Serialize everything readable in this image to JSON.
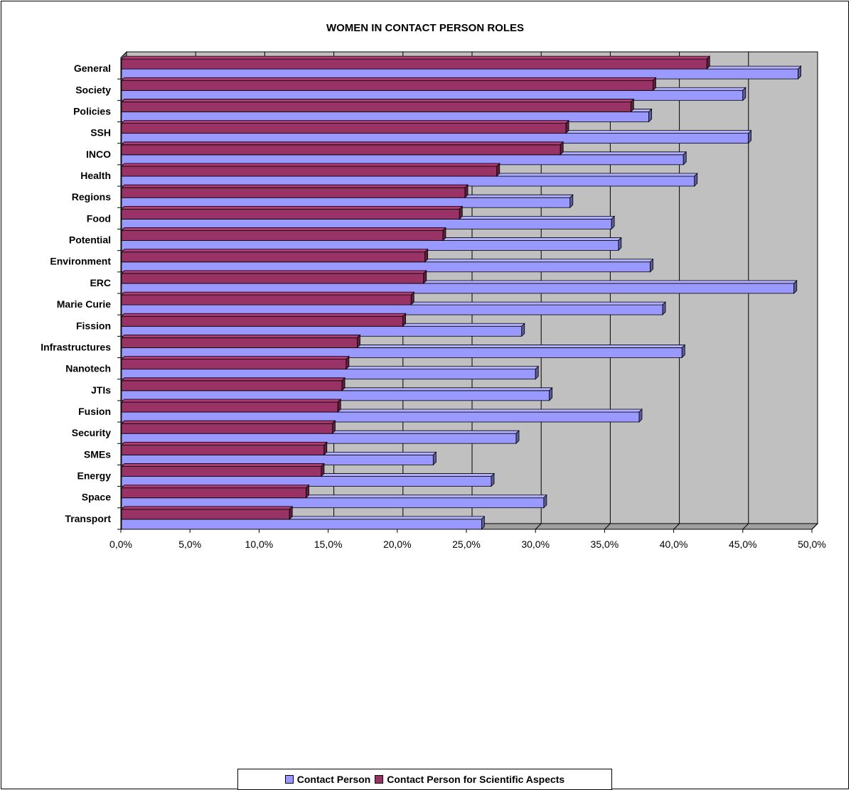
{
  "chart_data": {
    "type": "bar",
    "orientation": "horizontal",
    "title": "WOMEN IN CONTACT PERSON ROLES",
    "xlabel": "",
    "ylabel": "",
    "xlim": [
      0,
      50
    ],
    "x_tick_labels": [
      "0,0%",
      "5,0%",
      "10,0%",
      "15,0%",
      "20,0%",
      "25,0%",
      "30,0%",
      "35,0%",
      "40,0%",
      "45,0%",
      "50,0%"
    ],
    "grid": true,
    "legend_position": "bottom",
    "categories": [
      "General",
      "Society",
      "Policies",
      "SSH",
      "INCO",
      "Health",
      "Regions",
      "Food",
      "Potential",
      "Environment",
      "ERC",
      "Marie Curie",
      "Fission",
      "Infrastructures",
      "Nanotech",
      "JTIs",
      "Fusion",
      "Security",
      "SMEs",
      "Energy",
      "Space",
      "Transport"
    ],
    "series": [
      {
        "name": "Contact Person",
        "color": "#9999ff",
        "values": [
          49.0,
          45.0,
          38.2,
          45.4,
          40.7,
          41.5,
          32.5,
          35.5,
          36.0,
          38.3,
          48.7,
          39.2,
          29.0,
          40.6,
          30.0,
          31.0,
          37.5,
          28.6,
          22.6,
          26.8,
          30.6,
          26.1
        ]
      },
      {
        "name": "Contact Person for Scientific Aspects",
        "color": "#993366",
        "values": [
          42.4,
          38.5,
          36.9,
          32.2,
          31.8,
          27.2,
          24.9,
          24.5,
          23.3,
          22.0,
          21.9,
          21.0,
          20.4,
          17.1,
          16.3,
          16.0,
          15.7,
          15.3,
          14.7,
          14.5,
          13.4,
          12.2
        ]
      }
    ]
  },
  "colors": {
    "plot_background": "#c0c0c0",
    "wall_side": "#808080",
    "grid": "#000000"
  }
}
